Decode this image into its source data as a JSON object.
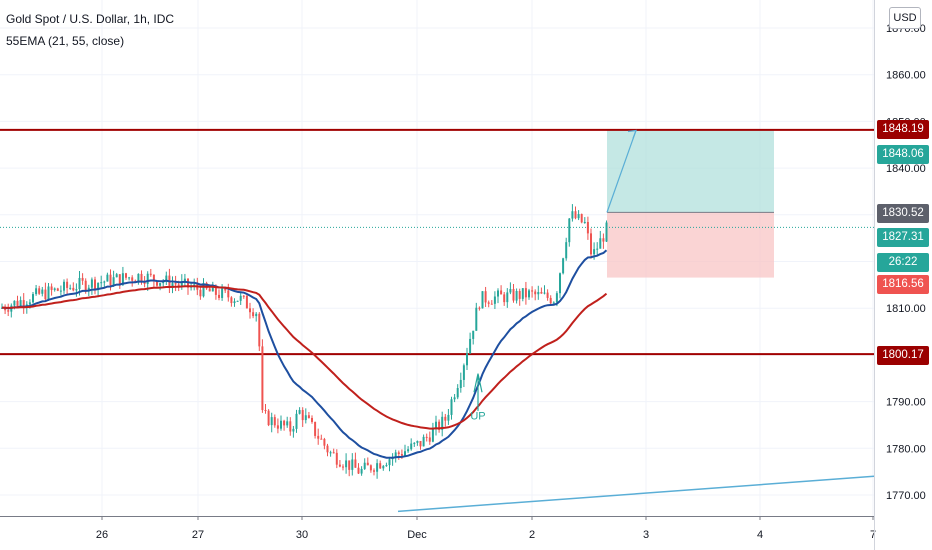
{
  "header": {
    "title": "Gold Spot / U.S. Dollar, 1h, IDC",
    "indicator": "55EMA (21, 55, close)"
  },
  "currency_button": "USD",
  "colors": {
    "up_candle": "#26a69a",
    "down_candle": "#ef5350",
    "ema_fast": "#1e4fa0",
    "ema_slow": "#c0201c",
    "level_line": "#a00000",
    "target_zone": "#b2e0dc",
    "stop_zone": "#f8c6c6",
    "trend_line": "#5aaed6",
    "current_price_line": "#26a69a"
  },
  "price_tags": [
    {
      "value": "1848.19",
      "color": "#9b0000"
    },
    {
      "value": "1848.06",
      "color": "#26a69a"
    },
    {
      "value": "1830.52",
      "color": "#5d606b"
    },
    {
      "value": "1827.31",
      "color": "#26a69a"
    },
    {
      "value": "26:22",
      "color": "#26a69a"
    },
    {
      "value": "1816.56",
      "color": "#ef5350"
    },
    {
      "value": "1800.17",
      "color": "#9b0000"
    }
  ],
  "annotation": {
    "text": "UP"
  },
  "chart_data": {
    "type": "candlestick",
    "y_axis": {
      "ticks": [
        "1870.00",
        "1860.00",
        "1850.00",
        "1840.00",
        "1830.00",
        "1820.00",
        "1810.00",
        "1800.00",
        "1790.00",
        "1780.00",
        "1770.00"
      ],
      "ylim": [
        1765.5,
        1876
      ]
    },
    "x_axis": {
      "tick_labels": [
        "26",
        "27",
        "30",
        "Dec",
        "2",
        "3",
        "4",
        "7"
      ]
    },
    "horizontal_levels": [
      1848.19,
      1800.17
    ],
    "current_price": 1827.31,
    "position": {
      "entry": 1830.52,
      "target": 1848.06,
      "stop": 1816.56
    },
    "trendline": {
      "from": 1766.5,
      "to": 1774
    }
  }
}
